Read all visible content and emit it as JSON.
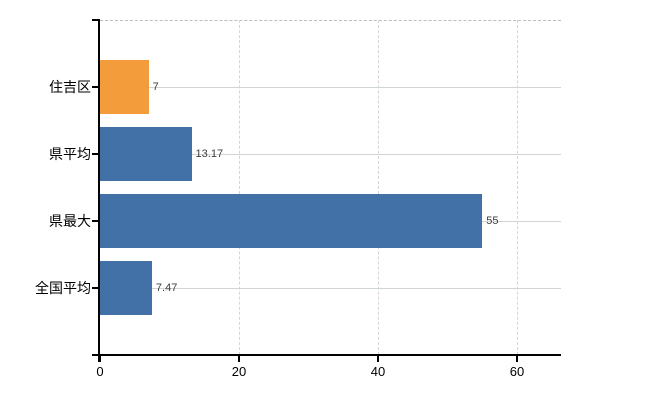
{
  "chart_data": {
    "type": "bar",
    "orientation": "horizontal",
    "title": "",
    "categories": [
      "住吉区",
      "県平均",
      "県最大",
      "全国平均"
    ],
    "series": [
      {
        "name": "values",
        "values": [
          7,
          13.17,
          55,
          7.47
        ]
      }
    ],
    "value_labels": [
      "7",
      "13.17",
      "55",
      "7.47"
    ],
    "bar_colors": [
      "#f29c3c",
      "#4271a8",
      "#4271a8",
      "#4271a8"
    ],
    "x_tick_labels": [
      "0",
      "20",
      "40",
      "60"
    ],
    "x_tick_values": [
      0,
      20,
      40,
      60
    ],
    "xlim": [
      0,
      66.3
    ],
    "legend": "none",
    "grid": {
      "vertical_gridlines": "dashed at 20, 40, 60",
      "horizontal_gridlines": "solid through each category row",
      "top_border": "dashed"
    }
  },
  "colors": {
    "bar_blue": "#4271a8",
    "bar_orange": "#f29c3c",
    "axis": "#000000",
    "grid_horizontal": "#cfd5cf",
    "grid_vertical": "#d9d3d3",
    "top_border": "#bdbdbd",
    "value_label": "#3c3c3c",
    "background": "#ffffff"
  }
}
